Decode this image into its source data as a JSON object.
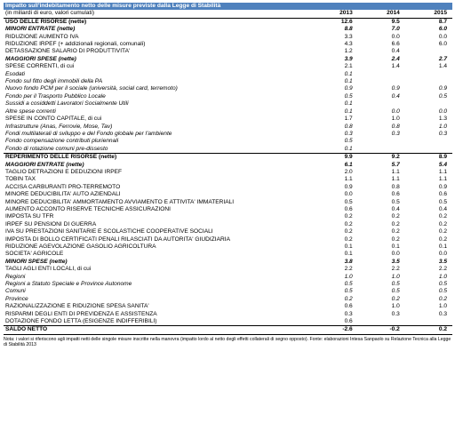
{
  "table": {
    "title": "Impatto sull'indebitamento netto delle misure previste dalla Legge di Stabilità",
    "subtitle": "(in miliardi di euro, valori cumulati)",
    "years": [
      "2013",
      "2014",
      "2015"
    ],
    "rows": [
      {
        "label": "USO DELLE RISORSE (nette)",
        "v": [
          "12.6",
          "9.5",
          "8.7"
        ],
        "style": "b"
      },
      {
        "label": "MINORI ENTRATE (nette)",
        "v": [
          "8.8",
          "7.0",
          "6.0"
        ],
        "style": "bi"
      },
      {
        "label": "RIDUZIONE AUMENTO IVA",
        "v": [
          "3.3",
          "0.0",
          "0.0"
        ],
        "style": ""
      },
      {
        "label": "RIDUZIONE IRPEF (+ addizionali regionali, comunali)",
        "v": [
          "4.3",
          "6.6",
          "6.0"
        ],
        "style": ""
      },
      {
        "label": "DETASSAZIONE SALARIO DI PRODUTTIVITA'",
        "v": [
          "1.2",
          "0.4",
          ""
        ],
        "style": ""
      },
      {
        "label": "MAGGIORI SPESE (nette)",
        "v": [
          "3.9",
          "2.4",
          "2.7"
        ],
        "style": "bi"
      },
      {
        "label": "SPESE CORRENTI, di cui",
        "v": [
          "2.1",
          "1.4",
          "1.4"
        ],
        "style": ""
      },
      {
        "label": "Esodati",
        "v": [
          "0.1",
          "",
          ""
        ],
        "style": "i"
      },
      {
        "label": "Fondo sul fitto degli immobili della PA",
        "v": [
          "0.1",
          "",
          ""
        ],
        "style": "i"
      },
      {
        "label": "Nuovo fondo PCM per il sociale (università, social card, terremoto)",
        "v": [
          "0.9",
          "0.9",
          "0.9"
        ],
        "style": "i"
      },
      {
        "label": "Fondo per il Trasporto Pubblico Locale",
        "v": [
          "0.5",
          "0.4",
          "0.5"
        ],
        "style": "i"
      },
      {
        "label": "Sussidi a cosiddetti Lavoratori Socialmente Utili",
        "v": [
          "0.1",
          "",
          ""
        ],
        "style": "i"
      },
      {
        "label": "Altre spese correnti",
        "v": [
          "0.1",
          "0.0",
          "0.0"
        ],
        "style": "i"
      },
      {
        "label": "SPESE IN CONTO CAPITALE, di cui",
        "v": [
          "1.7",
          "1.0",
          "1.3"
        ],
        "style": ""
      },
      {
        "label": "Infrastrutture (Anas, Ferrovie, Mose, Tav)",
        "v": [
          "0.8",
          "0.8",
          "1.0"
        ],
        "style": "i"
      },
      {
        "label": "Fondi multilaterali di sviluppo e del Fondo globale per l'ambiente",
        "v": [
          "0.3",
          "0.3",
          "0.3"
        ],
        "style": "i"
      },
      {
        "label": "Fondo compensazione contributi pluriennali",
        "v": [
          "0.5",
          "",
          ""
        ],
        "style": "i"
      },
      {
        "label": "Fondo di rotazione comuni pre-dissesto",
        "v": [
          "0.1",
          "",
          ""
        ],
        "style": "i"
      },
      {
        "label": "REPERIMENTO DELLE RISORSE (nette)",
        "v": [
          "9.9",
          "9.2",
          "8.9"
        ],
        "style": "b",
        "sep": true
      },
      {
        "label": "MAGGIORI ENTRATE (nette)",
        "v": [
          "6.1",
          "5.7",
          "5.4"
        ],
        "style": "bi"
      },
      {
        "label": "TAGLIO DETRAZIONI E DEDUZIONI IRPEF",
        "v": [
          "2.0",
          "1.1",
          "1.1"
        ],
        "style": ""
      },
      {
        "label": "TOBIN TAX",
        "v": [
          "1.1",
          "1.1",
          "1.1"
        ],
        "style": ""
      },
      {
        "label": "ACCISA CARBURANTI PRO-TERREMOTO",
        "v": [
          "0.9",
          "0.8",
          "0.9"
        ],
        "style": ""
      },
      {
        "label": "MINORE DEDUCIBILITA' AUTO AZIENDALI",
        "v": [
          "0.0",
          "0.6",
          "0.6"
        ],
        "style": ""
      },
      {
        "label": "MINORE DEDUCIBILITA' AMMORTAMENTO AVVIAMENTO E ATTIVITA' IMMATERIALI",
        "v": [
          "0.5",
          "0.5",
          "0.5"
        ],
        "style": ""
      },
      {
        "label": "AUMENTO ACCONTO RISERVE TECNICHE ASSICURAZIONI",
        "v": [
          "0.6",
          "0.4",
          "0.4"
        ],
        "style": ""
      },
      {
        "label": "IMPOSTA SU TFR",
        "v": [
          "0.2",
          "0.2",
          "0.2"
        ],
        "style": ""
      },
      {
        "label": "IRPEF SU PENSIONI DI GUERRA",
        "v": [
          "0.2",
          "0.2",
          "0.2"
        ],
        "style": ""
      },
      {
        "label": "IVA SU PRESTAZIONI SANITARIE E SCOLASTICHE COOPERATIVE SOCIALI",
        "v": [
          "0.2",
          "0.2",
          "0.2"
        ],
        "style": ""
      },
      {
        "label": "IMPOSTA DI BOLLO CERTIFICATI PENALI RILASCIATI DA AUTORITA' GIUDIZIARIA",
        "v": [
          "0.2",
          "0.2",
          "0.2"
        ],
        "style": ""
      },
      {
        "label": "RIDUZIONE AGEVOLAZIONE GASOLIO AGRICOLTURA",
        "v": [
          "0.1",
          "0.1",
          "0.1"
        ],
        "style": ""
      },
      {
        "label": "SOCIETA' AGRICOLE",
        "v": [
          "0.1",
          "0.0",
          "0.0"
        ],
        "style": ""
      },
      {
        "label": "MINORI SPESE (nette)",
        "v": [
          "3.8",
          "3.5",
          "3.5"
        ],
        "style": "bi"
      },
      {
        "label": "TAGLI AGLI ENTI LOCALI, di cui",
        "v": [
          "2.2",
          "2.2",
          "2.2"
        ],
        "style": ""
      },
      {
        "label": "Regioni",
        "v": [
          "1.0",
          "1.0",
          "1.0"
        ],
        "style": "i"
      },
      {
        "label": "Regioni a Statuto Speciale e Province Autonome",
        "v": [
          "0.5",
          "0.5",
          "0.5"
        ],
        "style": "i"
      },
      {
        "label": "Comuni",
        "v": [
          "0.5",
          "0.5",
          "0.5"
        ],
        "style": "i"
      },
      {
        "label": "Province",
        "v": [
          "0.2",
          "0.2",
          "0.2"
        ],
        "style": "i"
      },
      {
        "label": "RAZIONALIZZAZIONE E RIDUZIONE SPESA SANITA'",
        "v": [
          "0.6",
          "1.0",
          "1.0"
        ],
        "style": ""
      },
      {
        "label": "RISPARMI DEGLI ENTI DI PREVIDENZA E ASSISTENZA",
        "v": [
          "0.3",
          "0.3",
          "0.3"
        ],
        "style": ""
      },
      {
        "label": "DOTAZIONE FONDO LETTA (ESIGENZE INDIFFERIBILI)",
        "v": [
          "0.6",
          "",
          ""
        ],
        "style": ""
      },
      {
        "label": "SALDO NETTO",
        "v": [
          "-2.6",
          "-0.2",
          "0.2"
        ],
        "style": "b",
        "last": true
      }
    ],
    "note": "Nota: i valori si riferiscono agli impatti netti delle singole misure inscritte nella manovra (impatto lordo al netto degli effetti collaterali di segno opposto). Fonte: elaborazioni Intesa Sanpaolo su Relazione Tecnica alla Legge di Stabilità 2013"
  }
}
